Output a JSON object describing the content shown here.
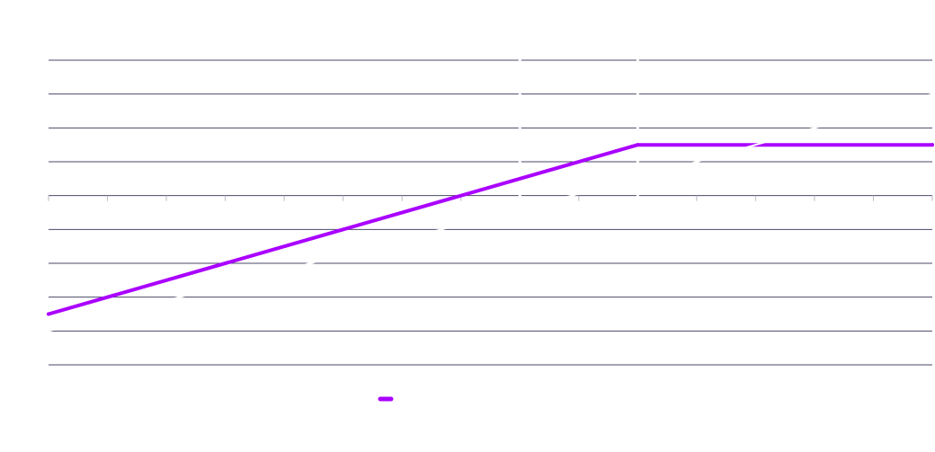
{
  "chart_data": {
    "type": "line",
    "title": "",
    "xlabel": "",
    "ylabel": "",
    "x": [
      0,
      10,
      15
    ],
    "xlim": [
      0,
      15
    ],
    "ylim": [
      0,
      9
    ],
    "grid": true,
    "legend": "bottom-center",
    "series": [
      {
        "color": "#aa00ff",
        "values": [
          1.5,
          6.5,
          6.5
        ]
      },
      {
        "color": "#ffffff",
        "values": [
          1.0,
          5.5,
          8.0
        ]
      }
    ]
  }
}
